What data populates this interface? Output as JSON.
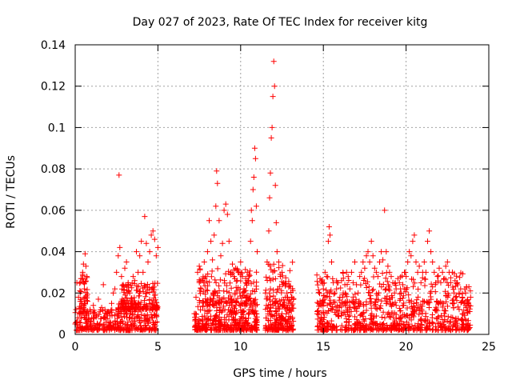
{
  "chart_data": {
    "type": "scatter",
    "title": "Day 027 of 2023, Rate Of TEC Index for receiver kitg",
    "xlabel": "GPS time / hours",
    "ylabel": "ROTI / TECUs",
    "xlim": [
      0,
      25
    ],
    "ylim": [
      0,
      0.14
    ],
    "x_ticks": [
      0,
      5,
      10,
      15,
      20,
      25
    ],
    "x_tick_labels": [
      "0",
      "5",
      "10",
      "15",
      "20",
      "25"
    ],
    "y_ticks": [
      0,
      0.02,
      0.04,
      0.06,
      0.08,
      0.1,
      0.12,
      0.14
    ],
    "y_tick_labels": [
      "0",
      "0.02",
      "0.04",
      "0.06",
      "0.08",
      "0.1",
      "0.12",
      "0.14"
    ],
    "grid": true,
    "marker": "+",
    "series": [
      {
        "name": "ROTI",
        "color": "#ff0000",
        "points": [
          [
            0.05,
            0.012
          ],
          [
            0.1,
            0.025
          ],
          [
            0.15,
            0.008
          ],
          [
            0.2,
            0.018
          ],
          [
            0.25,
            0.006
          ],
          [
            0.3,
            0.02
          ],
          [
            0.35,
            0.027
          ],
          [
            0.4,
            0.015
          ],
          [
            0.45,
            0.03
          ],
          [
            0.5,
            0.034
          ],
          [
            0.55,
            0.022
          ],
          [
            0.6,
            0.039
          ],
          [
            0.65,
            0.033
          ],
          [
            0.7,
            0.028
          ],
          [
            0.75,
            0.016
          ],
          [
            0.8,
            0.01
          ],
          [
            0.9,
            0.012
          ],
          [
            1.0,
            0.008
          ],
          [
            1.1,
            0.014
          ],
          [
            1.2,
            0.01
          ],
          [
            1.3,
            0.009
          ],
          [
            1.4,
            0.017
          ],
          [
            1.5,
            0.011
          ],
          [
            1.6,
            0.013
          ],
          [
            1.7,
            0.024
          ],
          [
            1.8,
            0.012
          ],
          [
            1.9,
            0.01
          ],
          [
            2.0,
            0.011
          ],
          [
            2.1,
            0.009
          ],
          [
            2.2,
            0.015
          ],
          [
            2.3,
            0.02
          ],
          [
            2.4,
            0.022
          ],
          [
            2.5,
            0.03
          ],
          [
            2.6,
            0.038
          ],
          [
            2.65,
            0.077
          ],
          [
            2.7,
            0.042
          ],
          [
            2.8,
            0.028
          ],
          [
            2.9,
            0.024
          ],
          [
            3.0,
            0.032
          ],
          [
            3.1,
            0.035
          ],
          [
            3.2,
            0.025
          ],
          [
            3.3,
            0.02
          ],
          [
            3.4,
            0.017
          ],
          [
            3.5,
            0.028
          ],
          [
            3.6,
            0.026
          ],
          [
            3.7,
            0.04
          ],
          [
            3.8,
            0.03
          ],
          [
            3.9,
            0.038
          ],
          [
            4.0,
            0.045
          ],
          [
            4.1,
            0.03
          ],
          [
            4.2,
            0.057
          ],
          [
            4.3,
            0.044
          ],
          [
            4.4,
            0.035
          ],
          [
            4.5,
            0.04
          ],
          [
            4.6,
            0.048
          ],
          [
            4.7,
            0.05
          ],
          [
            4.8,
            0.046
          ],
          [
            4.9,
            0.038
          ],
          [
            5.0,
            0.042
          ],
          [
            7.2,
            0.01
          ],
          [
            7.3,
            0.018
          ],
          [
            7.4,
            0.03
          ],
          [
            7.5,
            0.033
          ],
          [
            7.6,
            0.022
          ],
          [
            7.7,
            0.026
          ],
          [
            7.8,
            0.035
          ],
          [
            7.9,
            0.028
          ],
          [
            8.0,
            0.04
          ],
          [
            8.1,
            0.055
          ],
          [
            8.2,
            0.045
          ],
          [
            8.3,
            0.036
          ],
          [
            8.4,
            0.048
          ],
          [
            8.5,
            0.062
          ],
          [
            8.55,
            0.079
          ],
          [
            8.6,
            0.073
          ],
          [
            8.7,
            0.055
          ],
          [
            8.8,
            0.038
          ],
          [
            8.9,
            0.044
          ],
          [
            9.0,
            0.06
          ],
          [
            9.1,
            0.063
          ],
          [
            9.2,
            0.058
          ],
          [
            9.3,
            0.045
          ],
          [
            9.4,
            0.03
          ],
          [
            9.5,
            0.034
          ],
          [
            9.6,
            0.028
          ],
          [
            9.7,
            0.032
          ],
          [
            9.8,
            0.026
          ],
          [
            9.9,
            0.03
          ],
          [
            10.0,
            0.035
          ],
          [
            10.1,
            0.028
          ],
          [
            10.2,
            0.022
          ],
          [
            10.3,
            0.025
          ],
          [
            10.4,
            0.03
          ],
          [
            10.5,
            0.028
          ],
          [
            10.6,
            0.045
          ],
          [
            10.65,
            0.06
          ],
          [
            10.7,
            0.055
          ],
          [
            10.75,
            0.07
          ],
          [
            10.8,
            0.076
          ],
          [
            10.85,
            0.09
          ],
          [
            10.9,
            0.085
          ],
          [
            10.95,
            0.062
          ],
          [
            11.0,
            0.04
          ],
          [
            11.5,
            0.02
          ],
          [
            11.6,
            0.035
          ],
          [
            11.7,
            0.05
          ],
          [
            11.75,
            0.066
          ],
          [
            11.8,
            0.078
          ],
          [
            11.85,
            0.095
          ],
          [
            11.9,
            0.1
          ],
          [
            11.95,
            0.115
          ],
          [
            12.0,
            0.132
          ],
          [
            12.05,
            0.12
          ],
          [
            12.1,
            0.072
          ],
          [
            12.15,
            0.054
          ],
          [
            12.2,
            0.04
          ],
          [
            12.3,
            0.035
          ],
          [
            12.4,
            0.028
          ],
          [
            12.5,
            0.03
          ],
          [
            12.6,
            0.025
          ],
          [
            12.7,
            0.018
          ],
          [
            12.8,
            0.02
          ],
          [
            12.9,
            0.015
          ],
          [
            13.0,
            0.012
          ],
          [
            13.1,
            0.018
          ],
          [
            14.7,
            0.015
          ],
          [
            14.8,
            0.027
          ],
          [
            14.9,
            0.025
          ],
          [
            15.0,
            0.022
          ],
          [
            15.1,
            0.03
          ],
          [
            15.2,
            0.028
          ],
          [
            15.3,
            0.045
          ],
          [
            15.35,
            0.052
          ],
          [
            15.4,
            0.048
          ],
          [
            15.5,
            0.035
          ],
          [
            15.6,
            0.025
          ],
          [
            15.7,
            0.02
          ],
          [
            15.8,
            0.022
          ],
          [
            15.9,
            0.025
          ],
          [
            16.0,
            0.018
          ],
          [
            16.1,
            0.026
          ],
          [
            16.2,
            0.02
          ],
          [
            16.3,
            0.024
          ],
          [
            16.4,
            0.03
          ],
          [
            16.5,
            0.028
          ],
          [
            16.6,
            0.022
          ],
          [
            16.7,
            0.03
          ],
          [
            16.8,
            0.025
          ],
          [
            16.9,
            0.035
          ],
          [
            17.0,
            0.024
          ],
          [
            17.1,
            0.02
          ],
          [
            17.2,
            0.028
          ],
          [
            17.3,
            0.03
          ],
          [
            17.4,
            0.035
          ],
          [
            17.5,
            0.032
          ],
          [
            17.6,
            0.038
          ],
          [
            17.7,
            0.04
          ],
          [
            17.8,
            0.035
          ],
          [
            17.9,
            0.045
          ],
          [
            18.0,
            0.038
          ],
          [
            18.1,
            0.032
          ],
          [
            18.2,
            0.03
          ],
          [
            18.3,
            0.028
          ],
          [
            18.4,
            0.035
          ],
          [
            18.5,
            0.04
          ],
          [
            18.6,
            0.036
          ],
          [
            18.7,
            0.06
          ],
          [
            18.8,
            0.04
          ],
          [
            18.9,
            0.033
          ],
          [
            19.0,
            0.03
          ],
          [
            19.1,
            0.028
          ],
          [
            19.2,
            0.025
          ],
          [
            19.3,
            0.02
          ],
          [
            19.4,
            0.022
          ],
          [
            19.5,
            0.027
          ],
          [
            19.6,
            0.025
          ],
          [
            19.7,
            0.02
          ],
          [
            19.8,
            0.024
          ],
          [
            19.9,
            0.03
          ],
          [
            20.0,
            0.028
          ],
          [
            20.1,
            0.035
          ],
          [
            20.2,
            0.04
          ],
          [
            20.3,
            0.038
          ],
          [
            20.4,
            0.045
          ],
          [
            20.5,
            0.048
          ],
          [
            20.6,
            0.035
          ],
          [
            20.7,
            0.03
          ],
          [
            20.8,
            0.033
          ],
          [
            20.9,
            0.025
          ],
          [
            21.0,
            0.03
          ],
          [
            21.1,
            0.035
          ],
          [
            21.2,
            0.03
          ],
          [
            21.3,
            0.045
          ],
          [
            21.4,
            0.05
          ],
          [
            21.5,
            0.04
          ],
          [
            21.6,
            0.035
          ],
          [
            21.7,
            0.03
          ],
          [
            21.8,
            0.025
          ],
          [
            21.9,
            0.028
          ],
          [
            22.0,
            0.032
          ],
          [
            22.1,
            0.025
          ],
          [
            22.2,
            0.03
          ],
          [
            22.3,
            0.027
          ],
          [
            22.4,
            0.033
          ],
          [
            22.5,
            0.035
          ],
          [
            22.6,
            0.03
          ],
          [
            22.7,
            0.025
          ],
          [
            22.8,
            0.03
          ],
          [
            22.9,
            0.02
          ],
          [
            23.0,
            0.018
          ],
          [
            23.1,
            0.025
          ],
          [
            23.2,
            0.02
          ],
          [
            23.3,
            0.022
          ],
          [
            23.4,
            0.018
          ],
          [
            23.5,
            0.015
          ],
          [
            23.6,
            0.02
          ],
          [
            23.7,
            0.016
          ],
          [
            23.8,
            0.014
          ],
          [
            23.9,
            0.018
          ]
        ],
        "dense_bands": [
          {
            "x": [
              0.0,
              5.0
            ],
            "y": [
              0.002,
              0.012
            ],
            "count": 330
          },
          {
            "x": [
              2.6,
              5.0
            ],
            "y": [
              0.012,
              0.025
            ],
            "count": 180
          },
          {
            "x": [
              0.25,
              0.75
            ],
            "y": [
              0.01,
              0.03
            ],
            "count": 50
          },
          {
            "x": [
              7.2,
              11.0
            ],
            "y": [
              0.002,
              0.015
            ],
            "count": 330
          },
          {
            "x": [
              7.5,
              11.0
            ],
            "y": [
              0.015,
              0.032
            ],
            "count": 170
          },
          {
            "x": [
              11.5,
              13.2
            ],
            "y": [
              0.002,
              0.014
            ],
            "count": 160
          },
          {
            "x": [
              11.5,
              13.2
            ],
            "y": [
              0.014,
              0.035
            ],
            "count": 80
          },
          {
            "x": [
              14.6,
              23.9
            ],
            "y": [
              0.002,
              0.015
            ],
            "count": 560
          },
          {
            "x": [
              14.6,
              23.9
            ],
            "y": [
              0.015,
              0.03
            ],
            "count": 230
          }
        ]
      }
    ]
  }
}
